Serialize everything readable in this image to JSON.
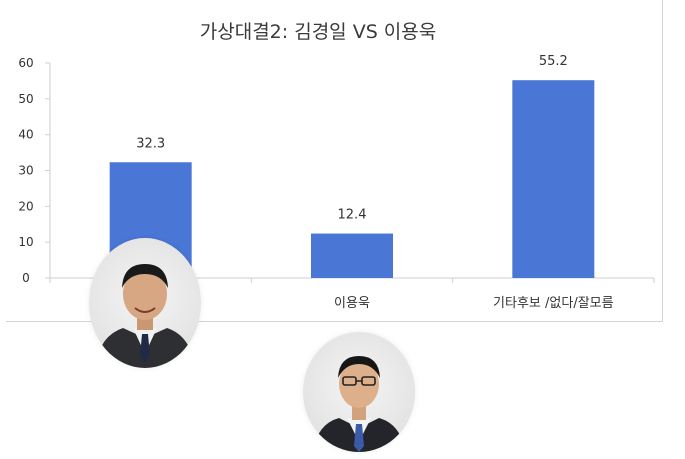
{
  "chart_data": {
    "type": "bar",
    "title": "가상대결2: 김경일 VS 이용욱",
    "categories": [
      "",
      "이용욱",
      "기타후보 /없다/잘모름"
    ],
    "values": [
      32.3,
      12.4,
      55.2
    ],
    "data_labels": [
      "32.3",
      "12.4",
      "55.2"
    ],
    "ylim": [
      0,
      60
    ],
    "yticks": [
      "0",
      "10",
      "20",
      "30",
      "40",
      "50",
      "60"
    ],
    "grid": false,
    "legend": "none",
    "bar_color": "#4a76d6"
  },
  "photos": [
    {
      "icon": "candidate-portrait-icon"
    },
    {
      "icon": "candidate-portrait-icon"
    }
  ]
}
